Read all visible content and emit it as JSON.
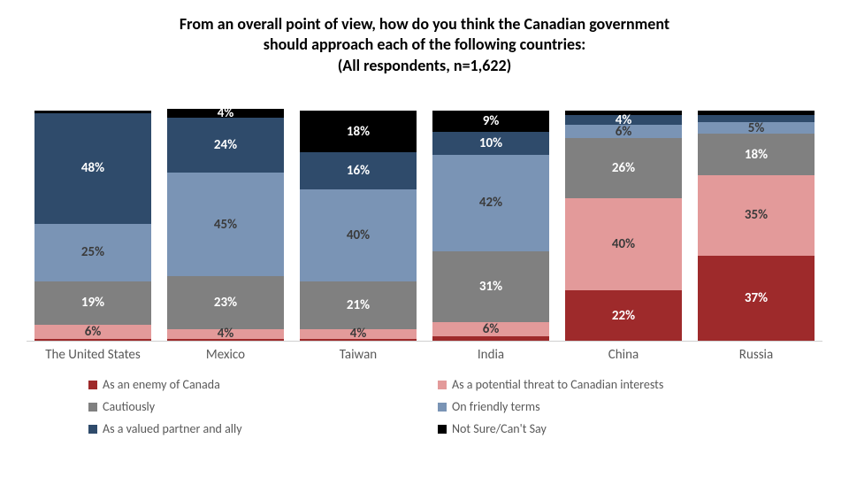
{
  "title_lines": [
    "From an overall point of view, how do you think the Canadian government",
    "should approach each of the following countries:",
    "(All respondents, n=1,622)"
  ],
  "title_fontsize": 18,
  "chart": {
    "type": "stacked-bar",
    "categories": [
      "The United States",
      "Mexico",
      "Taiwan",
      "India",
      "China",
      "Russia"
    ],
    "category_fontsize": 15,
    "series": [
      {
        "key": "enemy",
        "label": "As an enemy of Canada",
        "color": "#9e2a2b"
      },
      {
        "key": "threat",
        "label": "As a potential threat to Canadian interests",
        "color": "#e39a9a"
      },
      {
        "key": "cautious",
        "label": "Cautiously",
        "color": "#808080"
      },
      {
        "key": "friendly",
        "label": "On friendly terms",
        "color": "#7a94b5"
      },
      {
        "key": "partner",
        "label": "As a valued partner and ally",
        "color": "#2f4b6b"
      },
      {
        "key": "notsure",
        "label": "Not Sure/Can't Say",
        "color": "#000000"
      }
    ],
    "data": [
      {
        "enemy": 1,
        "threat": 6,
        "cautious": 19,
        "friendly": 25,
        "partner": 48,
        "notsure": 1
      },
      {
        "enemy": 1,
        "threat": 4,
        "cautious": 23,
        "friendly": 45,
        "partner": 24,
        "notsure": 4
      },
      {
        "enemy": 1,
        "threat": 4,
        "cautious": 21,
        "friendly": 40,
        "partner": 16,
        "notsure": 18
      },
      {
        "enemy": 2,
        "threat": 6,
        "cautious": 31,
        "friendly": 42,
        "partner": 10,
        "notsure": 9
      },
      {
        "enemy": 22,
        "threat": 40,
        "cautious": 26,
        "friendly": 6,
        "partner": 4,
        "notsure": 2
      },
      {
        "enemy": 37,
        "threat": 35,
        "cautious": 18,
        "friendly": 5,
        "partner": 3,
        "notsure": 2
      }
    ],
    "label_threshold": 4,
    "label_fontsize": 15,
    "label_color_light": "#ffffff",
    "label_color_dark": "#595959",
    "dark_text_series": [
      "threat",
      "friendly"
    ],
    "legend_fontsize": 14,
    "background_color": "#ffffff",
    "baseline_color": "#d0d0d0"
  }
}
